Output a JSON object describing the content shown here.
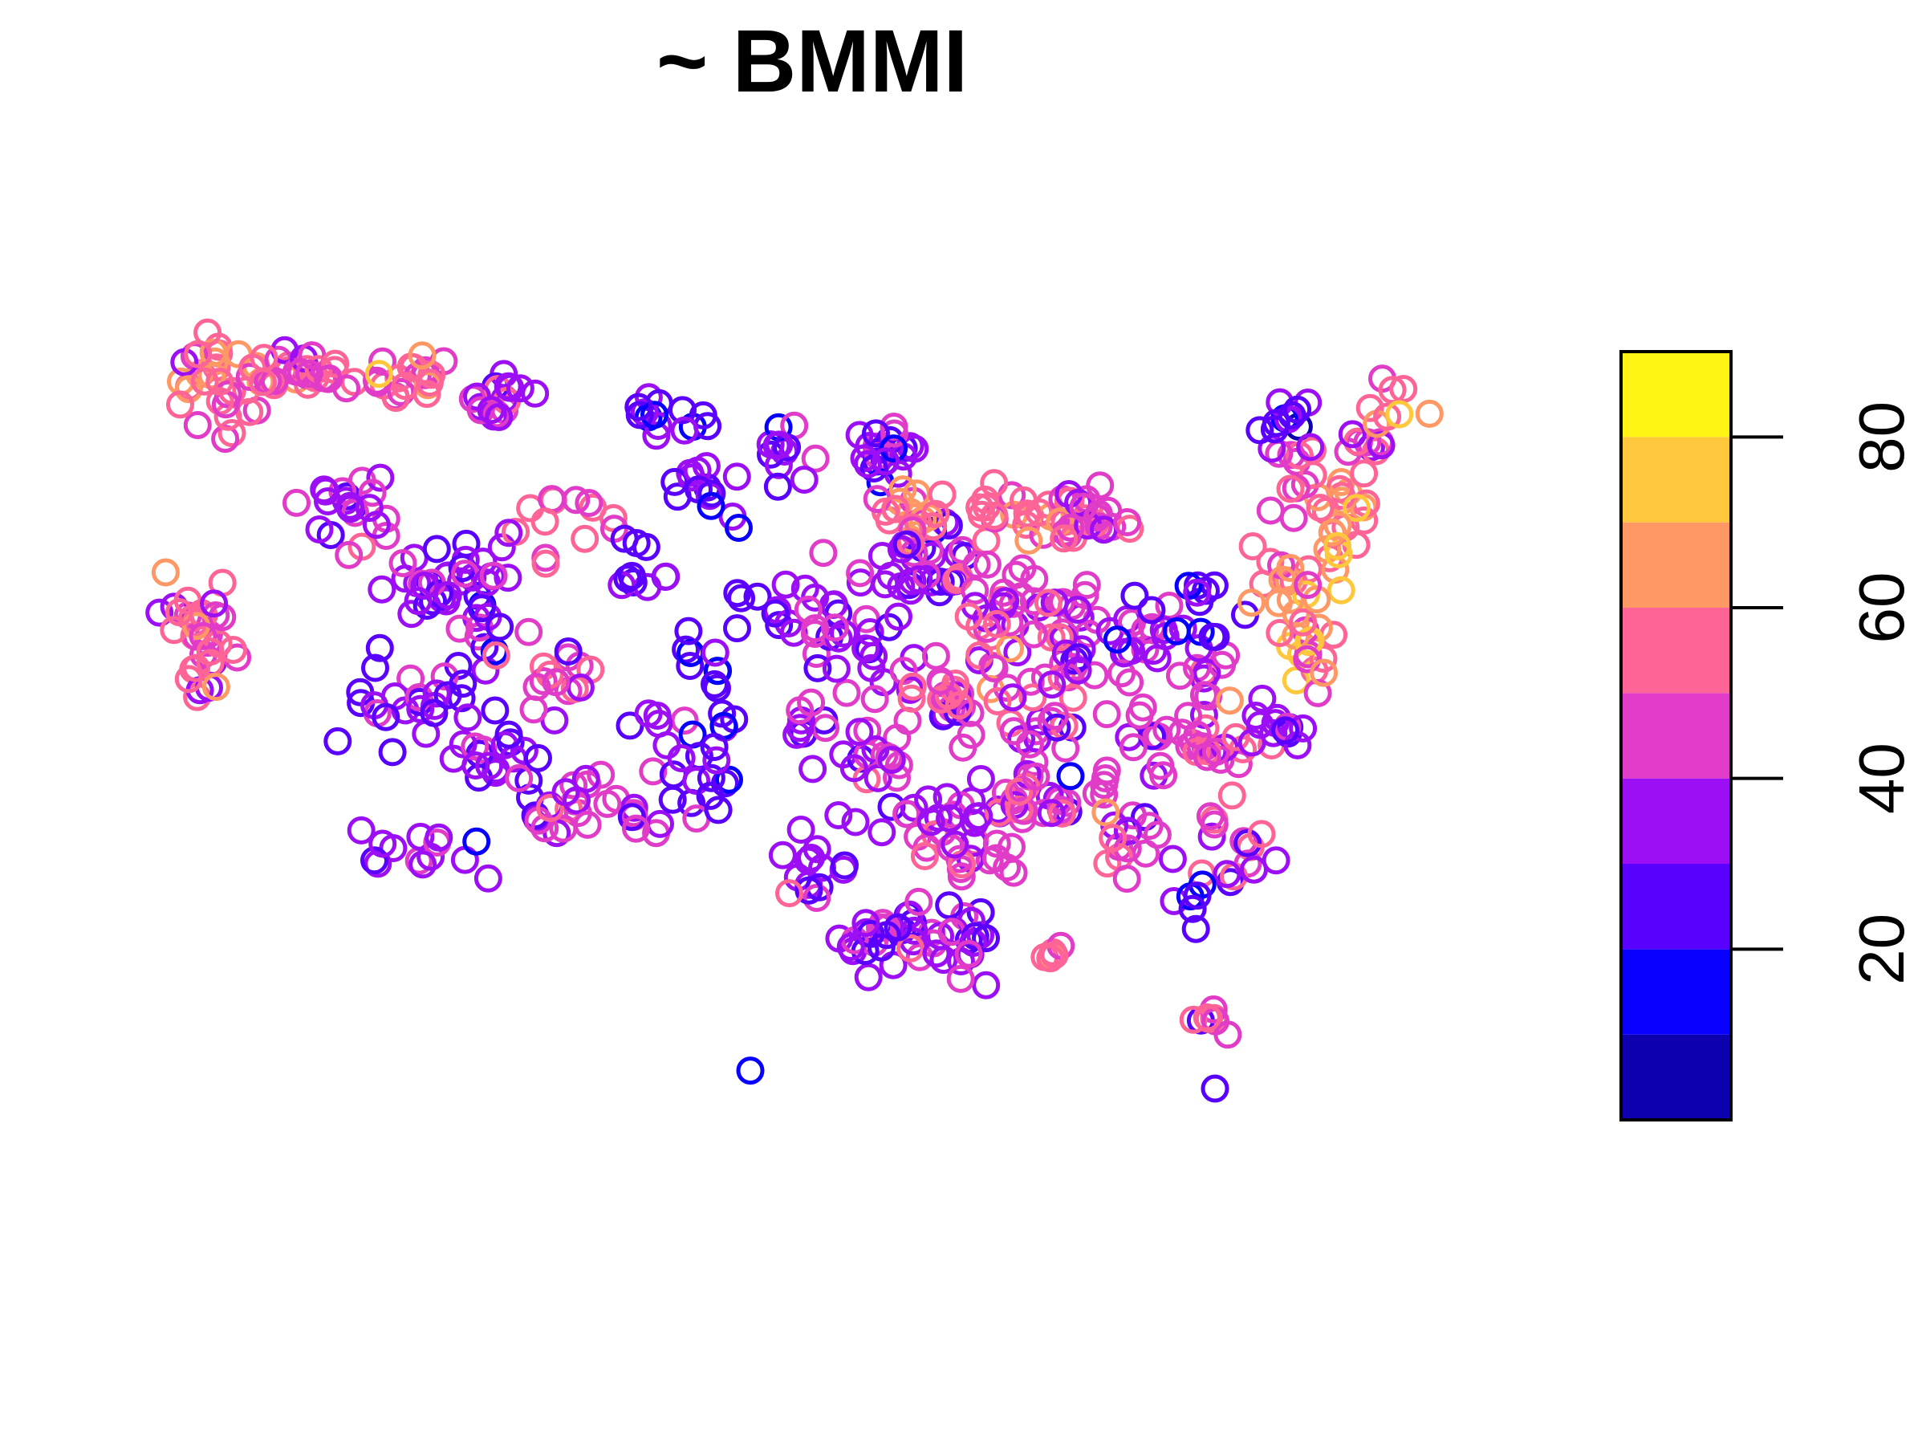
{
  "chart_data": {
    "type": "scatter",
    "title": "~ BMMI",
    "xlabel": "",
    "ylabel": "",
    "x": [],
    "values": [],
    "legend": {
      "type": "color-bar",
      "position": "right",
      "breaks": [
        0,
        10,
        20,
        30,
        40,
        50,
        60,
        70,
        80,
        90
      ],
      "colors": [
        "#0D00AE",
        "#0800FF",
        "#5A00FF",
        "#9C0FF4",
        "#E03CC8",
        "#FF6496",
        "#FF9864",
        "#FFC83C",
        "#FFF514"
      ],
      "ticks": [
        20,
        40,
        60,
        80
      ],
      "tick_labels": [
        "20",
        "40",
        "60",
        "80"
      ]
    }
  }
}
